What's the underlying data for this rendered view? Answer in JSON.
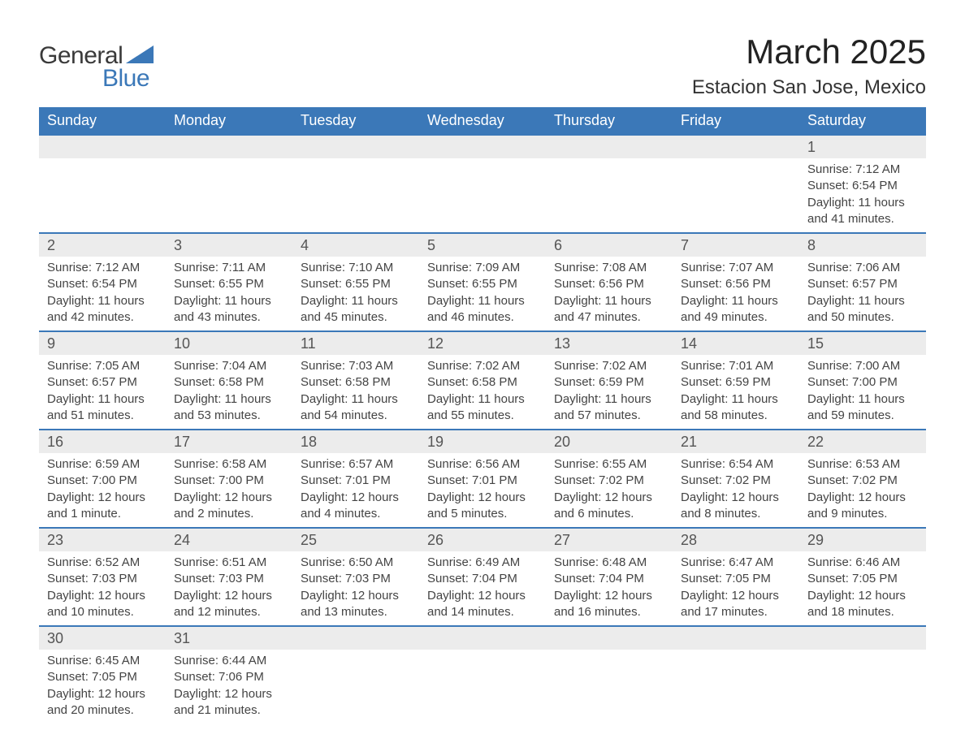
{
  "logo": {
    "text1": "General",
    "text2": "Blue",
    "shape_color": "#3b78b8"
  },
  "title": "March 2025",
  "location": "Estacion San Jose, Mexico",
  "colors": {
    "header_bg": "#3b78b8",
    "header_text": "#ffffff",
    "daynum_bg": "#ececec",
    "daynum_text": "#555555",
    "body_text": "#444444",
    "row_border": "#3b78b8",
    "page_bg": "#ffffff"
  },
  "typography": {
    "title_fontsize": 42,
    "location_fontsize": 24,
    "dayheader_fontsize": 18,
    "daynum_fontsize": 18,
    "detail_fontsize": 15,
    "font_family": "Arial"
  },
  "day_headers": [
    "Sunday",
    "Monday",
    "Tuesday",
    "Wednesday",
    "Thursday",
    "Friday",
    "Saturday"
  ],
  "weeks": [
    [
      null,
      null,
      null,
      null,
      null,
      null,
      {
        "n": "1",
        "sr": "7:12 AM",
        "ss": "6:54 PM",
        "dl": "11 hours and 41 minutes."
      }
    ],
    [
      {
        "n": "2",
        "sr": "7:12 AM",
        "ss": "6:54 PM",
        "dl": "11 hours and 42 minutes."
      },
      {
        "n": "3",
        "sr": "7:11 AM",
        "ss": "6:55 PM",
        "dl": "11 hours and 43 minutes."
      },
      {
        "n": "4",
        "sr": "7:10 AM",
        "ss": "6:55 PM",
        "dl": "11 hours and 45 minutes."
      },
      {
        "n": "5",
        "sr": "7:09 AM",
        "ss": "6:55 PM",
        "dl": "11 hours and 46 minutes."
      },
      {
        "n": "6",
        "sr": "7:08 AM",
        "ss": "6:56 PM",
        "dl": "11 hours and 47 minutes."
      },
      {
        "n": "7",
        "sr": "7:07 AM",
        "ss": "6:56 PM",
        "dl": "11 hours and 49 minutes."
      },
      {
        "n": "8",
        "sr": "7:06 AM",
        "ss": "6:57 PM",
        "dl": "11 hours and 50 minutes."
      }
    ],
    [
      {
        "n": "9",
        "sr": "7:05 AM",
        "ss": "6:57 PM",
        "dl": "11 hours and 51 minutes."
      },
      {
        "n": "10",
        "sr": "7:04 AM",
        "ss": "6:58 PM",
        "dl": "11 hours and 53 minutes."
      },
      {
        "n": "11",
        "sr": "7:03 AM",
        "ss": "6:58 PM",
        "dl": "11 hours and 54 minutes."
      },
      {
        "n": "12",
        "sr": "7:02 AM",
        "ss": "6:58 PM",
        "dl": "11 hours and 55 minutes."
      },
      {
        "n": "13",
        "sr": "7:02 AM",
        "ss": "6:59 PM",
        "dl": "11 hours and 57 minutes."
      },
      {
        "n": "14",
        "sr": "7:01 AM",
        "ss": "6:59 PM",
        "dl": "11 hours and 58 minutes."
      },
      {
        "n": "15",
        "sr": "7:00 AM",
        "ss": "7:00 PM",
        "dl": "11 hours and 59 minutes."
      }
    ],
    [
      {
        "n": "16",
        "sr": "6:59 AM",
        "ss": "7:00 PM",
        "dl": "12 hours and 1 minute."
      },
      {
        "n": "17",
        "sr": "6:58 AM",
        "ss": "7:00 PM",
        "dl": "12 hours and 2 minutes."
      },
      {
        "n": "18",
        "sr": "6:57 AM",
        "ss": "7:01 PM",
        "dl": "12 hours and 4 minutes."
      },
      {
        "n": "19",
        "sr": "6:56 AM",
        "ss": "7:01 PM",
        "dl": "12 hours and 5 minutes."
      },
      {
        "n": "20",
        "sr": "6:55 AM",
        "ss": "7:02 PM",
        "dl": "12 hours and 6 minutes."
      },
      {
        "n": "21",
        "sr": "6:54 AM",
        "ss": "7:02 PM",
        "dl": "12 hours and 8 minutes."
      },
      {
        "n": "22",
        "sr": "6:53 AM",
        "ss": "7:02 PM",
        "dl": "12 hours and 9 minutes."
      }
    ],
    [
      {
        "n": "23",
        "sr": "6:52 AM",
        "ss": "7:03 PM",
        "dl": "12 hours and 10 minutes."
      },
      {
        "n": "24",
        "sr": "6:51 AM",
        "ss": "7:03 PM",
        "dl": "12 hours and 12 minutes."
      },
      {
        "n": "25",
        "sr": "6:50 AM",
        "ss": "7:03 PM",
        "dl": "12 hours and 13 minutes."
      },
      {
        "n": "26",
        "sr": "6:49 AM",
        "ss": "7:04 PM",
        "dl": "12 hours and 14 minutes."
      },
      {
        "n": "27",
        "sr": "6:48 AM",
        "ss": "7:04 PM",
        "dl": "12 hours and 16 minutes."
      },
      {
        "n": "28",
        "sr": "6:47 AM",
        "ss": "7:05 PM",
        "dl": "12 hours and 17 minutes."
      },
      {
        "n": "29",
        "sr": "6:46 AM",
        "ss": "7:05 PM",
        "dl": "12 hours and 18 minutes."
      }
    ],
    [
      {
        "n": "30",
        "sr": "6:45 AM",
        "ss": "7:05 PM",
        "dl": "12 hours and 20 minutes."
      },
      {
        "n": "31",
        "sr": "6:44 AM",
        "ss": "7:06 PM",
        "dl": "12 hours and 21 minutes."
      },
      null,
      null,
      null,
      null,
      null
    ]
  ],
  "labels": {
    "sunrise": "Sunrise:",
    "sunset": "Sunset:",
    "daylight": "Daylight:"
  }
}
